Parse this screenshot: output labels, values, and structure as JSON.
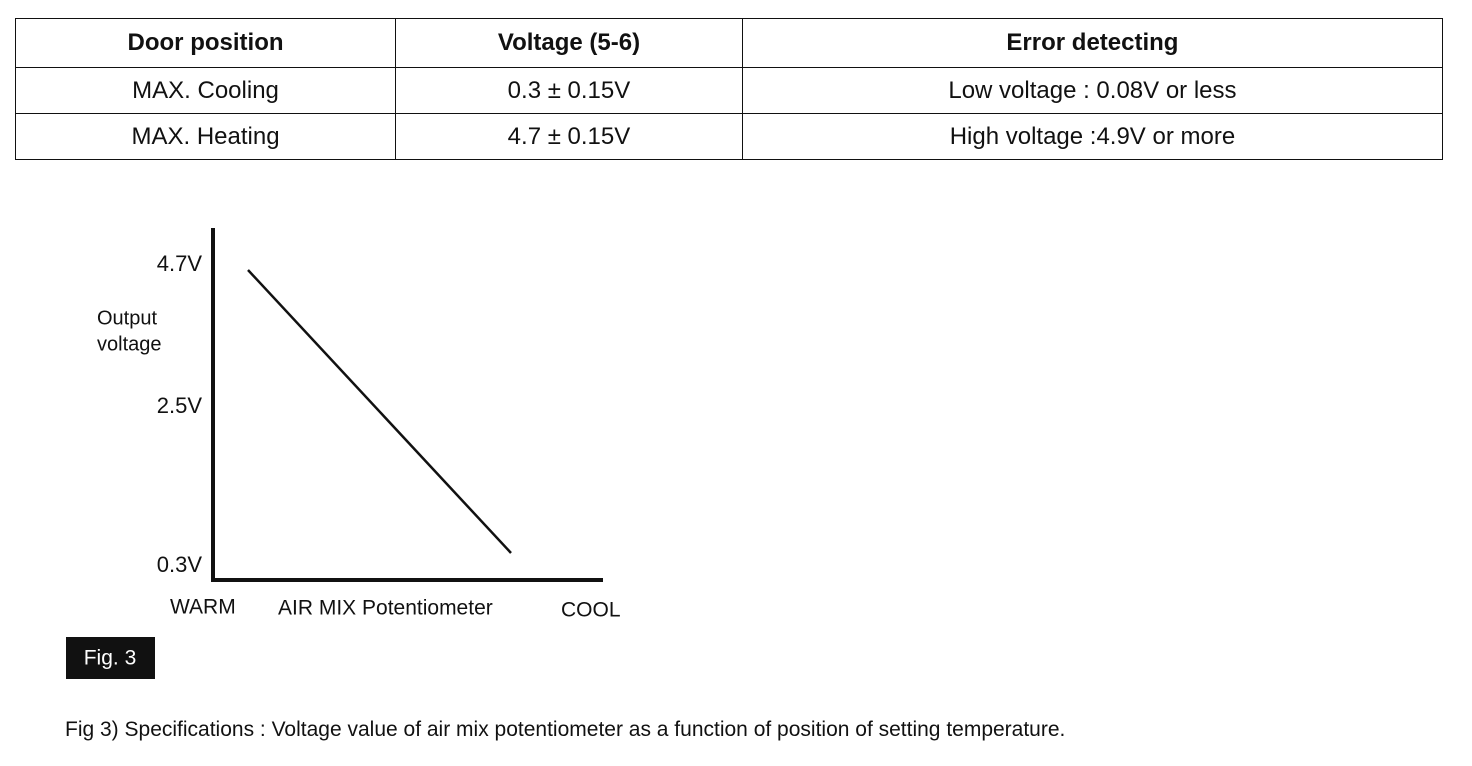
{
  "table": {
    "header": [
      "Door position",
      "Voltage (5-6)",
      "Error detecting"
    ],
    "rows": [
      [
        "MAX. Cooling",
        "0.3 ± 0.15V",
        "Low voltage : 0.08V or less"
      ],
      [
        "MAX. Heating",
        "4.7 ± 0.15V",
        "High voltage :4.9V or more"
      ]
    ]
  },
  "figure": {
    "y_ticks": [
      "4.7V",
      "2.5V",
      "0.3V"
    ],
    "y_label": [
      "Output",
      "voltage"
    ],
    "x_labels": [
      "WARM",
      "AIR MIX Potentiometer",
      "COOL"
    ],
    "badge": "Fig. 3"
  },
  "caption": "Fig 3) Specifications : Voltage value of air mix potentiometer as a function of position of setting temperature."
}
